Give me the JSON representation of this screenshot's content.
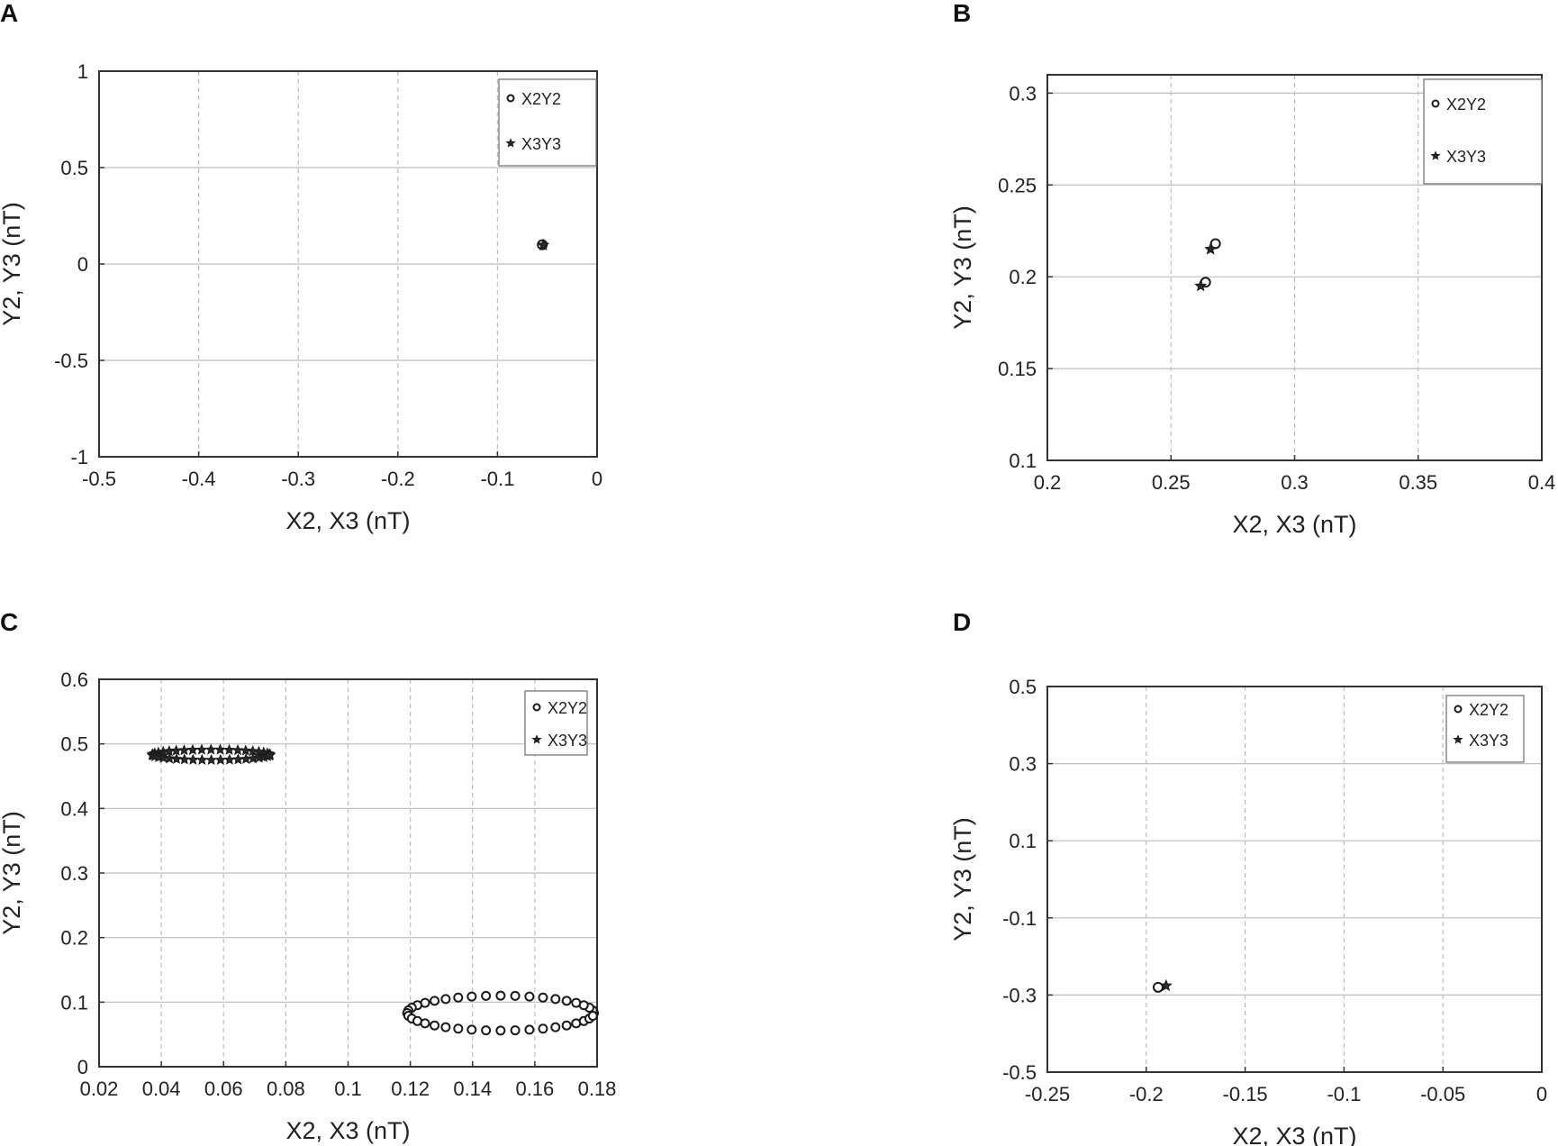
{
  "chart_data": [
    {
      "panel": "A",
      "type": "scatter",
      "xlabel": "X2, X3 (nT)",
      "ylabel": "Y2, Y3 (nT)",
      "xlim": [
        -0.5,
        0
      ],
      "ylim": [
        -1,
        1
      ],
      "xticks": [
        -0.5,
        -0.4,
        -0.3,
        -0.2,
        -0.1,
        0
      ],
      "xtick_labels": [
        "-0.5",
        "-0.4",
        "-0.3",
        "-0.2",
        "-0.1",
        "0"
      ],
      "yticks": [
        -1,
        -0.5,
        0,
        0.5,
        1
      ],
      "ytick_labels": [
        "-1",
        "-0.5",
        "0",
        "0.5",
        "1"
      ],
      "grid": true,
      "legend_position": "top-right",
      "series": [
        {
          "name": "X2Y2",
          "marker": "circle",
          "points": [
            [
              -0.055,
              0.1
            ]
          ]
        },
        {
          "name": "X3Y3",
          "marker": "star",
          "points": [
            [
              -0.054,
              0.098
            ]
          ]
        }
      ]
    },
    {
      "panel": "B",
      "type": "scatter",
      "xlabel": "X2, X3 (nT)",
      "ylabel": "Y2, Y3 (nT)",
      "xlim": [
        0.2,
        0.4
      ],
      "ylim": [
        0.1,
        0.31
      ],
      "xticks": [
        0.2,
        0.25,
        0.3,
        0.35,
        0.4
      ],
      "xtick_labels": [
        "0.2",
        "0.25",
        "0.3",
        "0.35",
        "0.4"
      ],
      "yticks": [
        0.1,
        0.15,
        0.2,
        0.25,
        0.3
      ],
      "ytick_labels": [
        "0.1",
        "0.15",
        "0.2",
        "0.25",
        "0.3"
      ],
      "grid": true,
      "legend_position": "top-right",
      "series": [
        {
          "name": "X2Y2",
          "marker": "circle",
          "points": [
            [
              0.264,
              0.197
            ],
            [
              0.268,
              0.218
            ]
          ]
        },
        {
          "name": "X3Y3",
          "marker": "star",
          "points": [
            [
              0.262,
              0.195
            ],
            [
              0.266,
              0.215
            ]
          ]
        }
      ]
    },
    {
      "panel": "C",
      "type": "scatter",
      "xlabel": "X2, X3 (nT)",
      "ylabel": "Y2, Y3 (nT)",
      "xlim": [
        0.02,
        0.18
      ],
      "ylim": [
        0,
        0.6
      ],
      "xticks": [
        0.02,
        0.04,
        0.06,
        0.08,
        0.1,
        0.12,
        0.14,
        0.16,
        0.18
      ],
      "xtick_labels": [
        "0.02",
        "0.04",
        "0.06",
        "0.08",
        "0.1",
        "0.12",
        "0.14",
        "0.16",
        "0.18"
      ],
      "yticks": [
        0,
        0.1,
        0.2,
        0.3,
        0.4,
        0.5,
        0.6
      ],
      "ytick_labels": [
        "0",
        "0.1",
        "0.2",
        "0.3",
        "0.4",
        "0.5",
        "0.6"
      ],
      "grid": true,
      "legend_position": "top-right",
      "series": [
        {
          "name": "X2Y2",
          "marker": "circle",
          "ellipse": {
            "cx": 0.149,
            "cy": 0.083,
            "rx": 0.03,
            "ry": 0.027,
            "tilt_deg": 0,
            "points": 40
          }
        },
        {
          "name": "X3Y3",
          "marker": "star",
          "ellipse": {
            "cx": 0.056,
            "cy": 0.483,
            "rx": 0.019,
            "ry": 0.008,
            "tilt_deg": 2,
            "points": 40
          }
        }
      ]
    },
    {
      "panel": "D",
      "type": "scatter",
      "xlabel": "X2, X3 (nT)",
      "ylabel": "Y2, Y3 (nT)",
      "xlim": [
        -0.25,
        0
      ],
      "ylim": [
        -0.5,
        0.5
      ],
      "xticks": [
        -0.25,
        -0.2,
        -0.15,
        -0.1,
        -0.05,
        0
      ],
      "xtick_labels": [
        "-0.25",
        "-0.2",
        "-0.15",
        "-0.1",
        "-0.05",
        "0"
      ],
      "yticks": [
        -0.5,
        -0.3,
        -0.1,
        0.1,
        0.3,
        0.5
      ],
      "ytick_labels": [
        "-0.5",
        "-0.3",
        "-0.1",
        "0.1",
        "0.3",
        "0.5"
      ],
      "grid": true,
      "legend_position": "top-right",
      "series": [
        {
          "name": "X2Y2",
          "marker": "circle",
          "points": [
            [
              -0.194,
              -0.28
            ]
          ]
        },
        {
          "name": "X3Y3",
          "marker": "star",
          "points": [
            [
              -0.19,
              -0.276
            ]
          ]
        }
      ]
    }
  ]
}
